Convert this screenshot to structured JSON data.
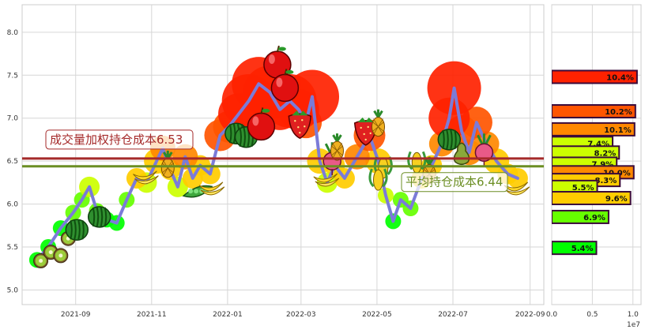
{
  "chart_data": [
    {
      "type": "line",
      "x_ticks": [
        "2021-09",
        "2021-11",
        "2022-01",
        "2022-03",
        "2022-05",
        "2022-07",
        "2022-09"
      ],
      "y_ticks": [
        "5.0",
        "5.5",
        "6.0",
        "6.5",
        "7.0",
        "7.5",
        "8.0"
      ],
      "xlim": [
        "2021-07-20",
        "2022-09-12"
      ],
      "ylim": [
        4.83,
        8.32
      ],
      "grid": true,
      "series": [
        {
          "points": [
            [
              "2021-08-01",
              5.35
            ],
            [
              "2021-08-10",
              5.5
            ],
            [
              "2021-08-20",
              5.72
            ],
            [
              "2021-08-30",
              5.9
            ],
            [
              "2021-09-06",
              6.05
            ],
            [
              "2021-09-12",
              6.2
            ],
            [
              "2021-09-18",
              5.92
            ],
            [
              "2021-09-26",
              5.82
            ],
            [
              "2021-10-04",
              5.78
            ],
            [
              "2021-10-12",
              6.05
            ],
            [
              "2021-10-20",
              6.3
            ],
            [
              "2021-10-28",
              6.25
            ],
            [
              "2021-11-05",
              6.5
            ],
            [
              "2021-11-10",
              6.65
            ],
            [
              "2021-11-16",
              6.4
            ],
            [
              "2021-11-22",
              6.2
            ],
            [
              "2021-11-28",
              6.55
            ],
            [
              "2021-12-04",
              6.3
            ],
            [
              "2021-12-10",
              6.45
            ],
            [
              "2021-12-18",
              6.35
            ],
            [
              "2021-12-26",
              6.8
            ],
            [
              "2022-01-02",
              6.9
            ],
            [
              "2022-01-10",
              7.05
            ],
            [
              "2022-01-18",
              7.2
            ],
            [
              "2022-01-26",
              7.4
            ],
            [
              "2022-02-04",
              7.3
            ],
            [
              "2022-02-12",
              7.1
            ],
            [
              "2022-02-20",
              7.2
            ],
            [
              "2022-02-27",
              7.1
            ],
            [
              "2022-03-05",
              6.95
            ],
            [
              "2022-03-10",
              7.25
            ],
            [
              "2022-03-16",
              6.5
            ],
            [
              "2022-03-22",
              6.25
            ],
            [
              "2022-03-28",
              6.45
            ],
            [
              "2022-04-05",
              6.3
            ],
            [
              "2022-04-15",
              6.55
            ],
            [
              "2022-04-25",
              6.8
            ],
            [
              "2022-05-02",
              6.5
            ],
            [
              "2022-05-08",
              6.1
            ],
            [
              "2022-05-14",
              5.8
            ],
            [
              "2022-05-20",
              6.05
            ],
            [
              "2022-05-28",
              5.95
            ],
            [
              "2022-06-06",
              6.3
            ],
            [
              "2022-06-14",
              6.45
            ],
            [
              "2022-06-22",
              6.7
            ],
            [
              "2022-06-28",
              7.0
            ],
            [
              "2022-07-02",
              7.35
            ],
            [
              "2022-07-08",
              6.85
            ],
            [
              "2022-07-14",
              6.6
            ],
            [
              "2022-07-20",
              6.95
            ],
            [
              "2022-07-28",
              6.7
            ],
            [
              "2022-08-05",
              6.5
            ],
            [
              "2022-08-14",
              6.35
            ],
            [
              "2022-08-22",
              6.3
            ]
          ],
          "color": "#7b7bd8"
        }
      ],
      "reference_lines": [
        {
          "value": 6.53,
          "label": "成交量加权持仓成本6.53",
          "color": "#a52a2a"
        },
        {
          "value": 6.44,
          "label": "平均持仓成本6.44",
          "color": "#6b8e23"
        }
      ],
      "bubble_colors": [
        "#ff2200",
        "#ff5500",
        "#ff8800",
        "#ffcc00",
        "#ccff00",
        "#66ff00",
        "#00ff00"
      ],
      "fruit_icons": [
        "kiwi-icon",
        "watermelon-icon",
        "banana-icon",
        "pineapple-icon",
        "pea-pod-icon",
        "apple-icon",
        "strawberry-icon",
        "radish-icon",
        "pear-icon",
        "corn-icon"
      ]
    },
    {
      "type": "bar",
      "orientation": "horizontal",
      "x_ticks": [
        "0.0",
        "0.5",
        "1.0"
      ],
      "x_exponent": "1e7",
      "xlim": [
        0,
        11000000.0
      ],
      "ylim": [
        4.83,
        8.32
      ],
      "bars": [
        {
          "price": 7.48,
          "value": 10500000.0,
          "label": "10.4%",
          "color": "#ff2200"
        },
        {
          "price": 7.08,
          "value": 10300000.0,
          "label": "10.2%",
          "color": "#ff5500"
        },
        {
          "price": 6.87,
          "value": 10200000.0,
          "label": "10.1%",
          "color": "#ff8800"
        },
        {
          "price": 6.71,
          "value": 7500000.0,
          "label": "7.4%",
          "color": "#ccff00"
        },
        {
          "price": 6.6,
          "value": 8300000.0,
          "label": "8.2%",
          "color": "#ccff00"
        },
        {
          "price": 6.47,
          "value": 8000000.0,
          "label": "7.9%",
          "color": "#ccff00"
        },
        {
          "price": 6.37,
          "value": 10100000.0,
          "label": "10.0%",
          "color": "#ff8800"
        },
        {
          "price": 6.28,
          "value": 8400000.0,
          "label": "8.3%",
          "color": "#ffcc00"
        },
        {
          "price": 6.2,
          "value": 5600000.0,
          "label": "5.5%",
          "color": "#ccff00"
        },
        {
          "price": 6.07,
          "value": 9700000.0,
          "label": "9.6%",
          "color": "#ffcc00"
        },
        {
          "price": 5.85,
          "value": 7000000.0,
          "label": "6.9%",
          "color": "#66ff00"
        },
        {
          "price": 5.49,
          "value": 5500000.0,
          "label": "5.4%",
          "color": "#00ff00"
        }
      ]
    }
  ]
}
